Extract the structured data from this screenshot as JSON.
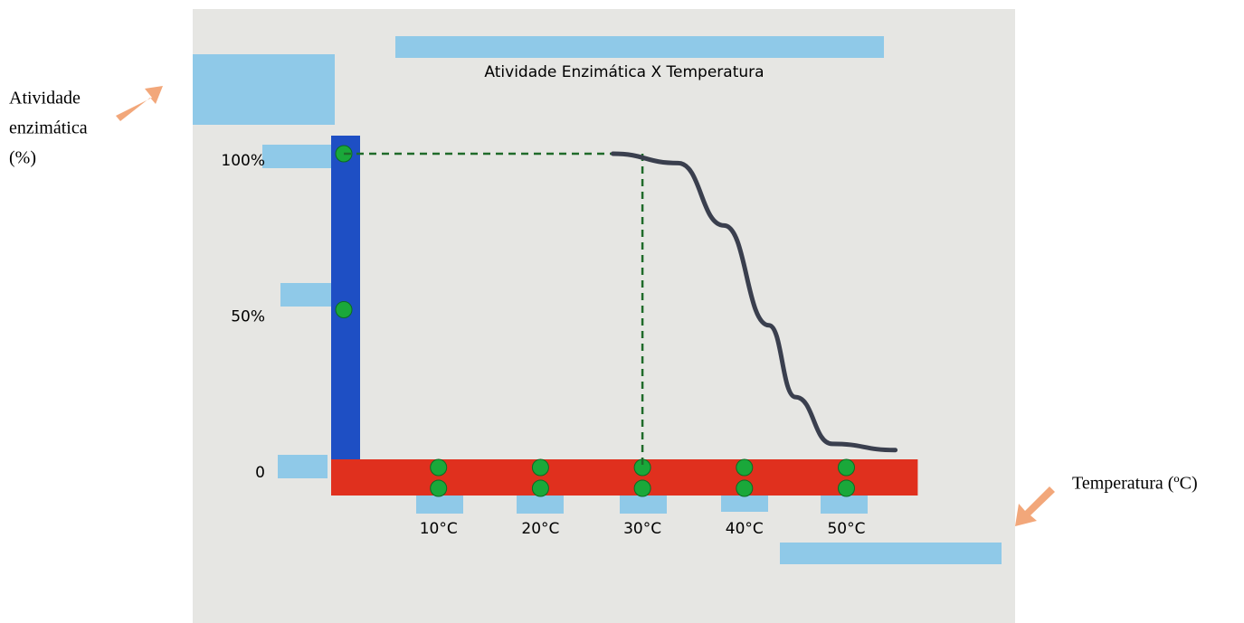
{
  "chart_data": {
    "type": "line",
    "title": "Atividade Enzimática X Temperatura",
    "ylabel": [
      "Atividade",
      "enzimática",
      "(%)"
    ],
    "xlabel": "Temperatura (ºC)",
    "x": [
      27.1,
      33.5,
      38,
      42.4,
      45,
      48.6,
      54.8
    ],
    "values": [
      100,
      97,
      77,
      45,
      22,
      7,
      5
    ],
    "color": "#3a3f4e",
    "xlim": [
      0,
      57
    ],
    "ylim": [
      0,
      100
    ],
    "xticks": [
      {
        "value": 10,
        "label": "10°C"
      },
      {
        "value": 20,
        "label": "20°C"
      },
      {
        "value": 30,
        "label": "30°C"
      },
      {
        "value": 40,
        "label": "40°C"
      },
      {
        "value": 50,
        "label": "50°C"
      }
    ],
    "yticks": [
      0,
      {
        "value": 50,
        "label": "50%"
      },
      {
        "value": 100,
        "label": "100%"
      }
    ]
  }
}
